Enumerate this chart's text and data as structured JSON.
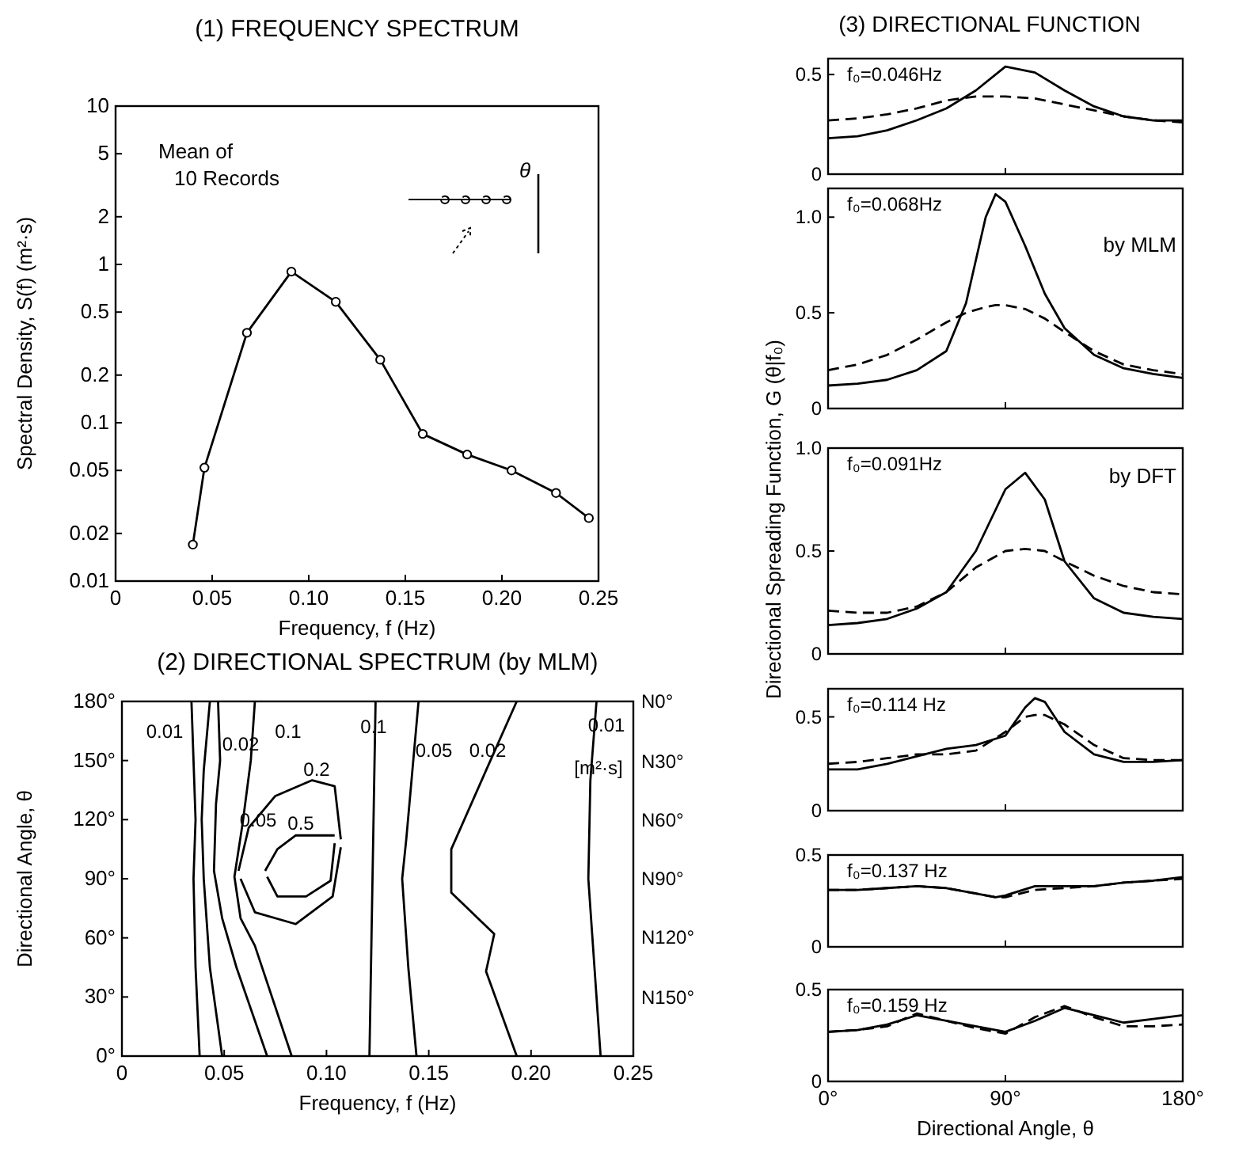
{
  "chart_data": [
    {
      "type": "line",
      "title": "(1) FREQUENCY SPECTRUM",
      "xlabel": "Frequency, f (Hz)",
      "ylabel": "Spectral Density, S(f) (m²·s)",
      "log": "y",
      "marker": "circle",
      "line_style": "solid",
      "x": [
        0.04,
        0.046,
        0.068,
        0.091,
        0.114,
        0.137,
        0.159,
        0.182,
        0.205,
        0.228,
        0.245
      ],
      "series": [
        {
          "color": "#000000",
          "values": [
            0.017,
            0.052,
            0.37,
            0.9,
            0.58,
            0.25,
            0.085,
            0.063,
            0.05,
            0.036,
            0.025
          ]
        }
      ],
      "xlim": [
        0,
        0.25
      ],
      "xticks": [
        0,
        0.05,
        {
          "value": 0.1,
          "label": "0.10"
        },
        0.15,
        {
          "value": 0.2,
          "label": "0.20"
        },
        0.25
      ],
      "ylim": [
        0.01,
        10
      ],
      "yticks": [
        0.01,
        0.02,
        0.05,
        0.1,
        0.2,
        0.5,
        1,
        2,
        5,
        10
      ],
      "annotations": [
        "Mean of\n10 Records",
        "θ"
      ]
    },
    {
      "type": "line",
      "title": "(2) DIRECTIONAL SPECTRUM (by MLM)",
      "xlabel": "Frequency, f (Hz)",
      "ylabel": "Directional Angle, θ",
      "line_style": "solid",
      "series": [
        {
          "color": "#000000",
          "x": [
            0.034,
            0.035,
            0.036,
            0.035,
            0.036,
            0.038
          ],
          "values": [
            180,
            150,
            120,
            90,
            45,
            0
          ]
        },
        {
          "color": "#000000",
          "x": [
            0.043,
            0.04,
            0.039,
            0.04,
            0.043,
            0.049
          ],
          "values": [
            180,
            145,
            120,
            90,
            45,
            0
          ]
        },
        {
          "color": "#000000",
          "x": [
            0.047,
            0.048,
            0.046,
            0.045,
            0.049,
            0.056,
            0.071
          ],
          "values": [
            180,
            150,
            128,
            94,
            70,
            45,
            0
          ]
        },
        {
          "color": "#000000",
          "x": [
            0.065,
            0.063,
            0.059,
            0.055,
            0.058,
            0.065,
            0.083
          ],
          "values": [
            180,
            150,
            118,
            91,
            70,
            56,
            0
          ]
        },
        {
          "color": "#000000",
          "x": [
            0.057,
            0.062,
            0.075,
            0.093,
            0.104,
            0.107
          ],
          "values": [
            94,
            116,
            132,
            140,
            137,
            110
          ]
        },
        {
          "color": "#000000",
          "x": [
            0.058,
            0.065,
            0.085,
            0.103,
            0.107
          ],
          "values": [
            90,
            73,
            67,
            81,
            106
          ]
        },
        {
          "color": "#000000",
          "x": [
            0.07,
            0.076,
            0.085,
            0.104
          ],
          "values": [
            94,
            105,
            112,
            112
          ]
        },
        {
          "color": "#000000",
          "x": [
            0.071,
            0.076,
            0.09,
            0.102,
            0.104
          ],
          "values": [
            91,
            81,
            81,
            89,
            108
          ]
        },
        {
          "color": "#000000",
          "x": [
            0.124,
            0.123,
            0.122,
            0.121
          ],
          "values": [
            180,
            120,
            60,
            0
          ]
        },
        {
          "color": "#000000",
          "x": [
            0.145,
            0.142,
            0.139,
            0.137,
            0.14,
            0.144
          ],
          "values": [
            180,
            145,
            110,
            90,
            45,
            0
          ]
        },
        {
          "color": "#000000",
          "x": [
            0.193,
            0.178,
            0.161,
            0.161,
            0.182,
            0.178,
            0.193
          ],
          "values": [
            180,
            145,
            105,
            83,
            62,
            43,
            0
          ]
        },
        {
          "color": "#000000",
          "x": [
            0.232,
            0.229,
            0.228,
            0.231,
            0.234
          ],
          "values": [
            180,
            140,
            90,
            45,
            0
          ]
        }
      ],
      "xlim": [
        0,
        0.25
      ],
      "xticks": [
        0,
        0.05,
        {
          "value": 0.1,
          "label": "0.10"
        },
        0.15,
        {
          "value": 0.2,
          "label": "0.20"
        },
        0.25
      ],
      "ylim": [
        0,
        180
      ],
      "yticks": [
        {
          "value": 0,
          "label": "0°"
        },
        {
          "value": 30,
          "label": "30°"
        },
        {
          "value": 60,
          "label": "60°"
        },
        {
          "value": 90,
          "label": "90°"
        },
        {
          "value": 120,
          "label": "120°"
        },
        {
          "value": 150,
          "label": "150°"
        },
        {
          "value": 180,
          "label": "180°"
        }
      ],
      "annotations": [
        "0.01",
        "0.02",
        "0.05",
        "0.1",
        "0.2",
        "0.5",
        "0.1",
        "0.05",
        "0.02",
        "0.01",
        "[m²·s]",
        "N0°",
        "N30°",
        "N60°",
        "N90°",
        "N120°",
        "N150°"
      ]
    },
    {
      "type": "line",
      "title": "(3) DIRECTIONAL FUNCTION",
      "subtitle": "f₀=0.046Hz",
      "tick_labels": "y",
      "x": [
        0,
        15,
        30,
        45,
        60,
        75,
        90,
        105,
        120,
        135,
        150,
        165,
        180
      ],
      "series": [
        {
          "color": "#000000",
          "line_style": "solid",
          "values": [
            0.18,
            0.19,
            0.22,
            0.27,
            0.33,
            0.42,
            0.54,
            0.51,
            0.42,
            0.34,
            0.29,
            0.27,
            0.27
          ]
        },
        {
          "color": "#000000",
          "line_style": "dashed",
          "values": [
            0.27,
            0.28,
            0.3,
            0.33,
            0.37,
            0.39,
            0.39,
            0.38,
            0.35,
            0.32,
            0.29,
            0.27,
            0.26
          ]
        }
      ],
      "xlim": [
        0,
        180
      ],
      "xticks": [
        {
          "value": 90,
          "label": null
        }
      ],
      "ylim": [
        0,
        0.58
      ],
      "yticks": [
        0,
        0.5
      ]
    },
    {
      "type": "line",
      "subtitle": "f₀=0.068Hz",
      "tick_labels": "y",
      "x": [
        0,
        15,
        30,
        45,
        60,
        70,
        80,
        85,
        90,
        100,
        110,
        120,
        135,
        150,
        165,
        180
      ],
      "series": [
        {
          "name": "by MLM",
          "color": "#000000",
          "line_style": "solid",
          "values": [
            0.12,
            0.13,
            0.15,
            0.2,
            0.3,
            0.55,
            1.0,
            1.12,
            1.08,
            0.85,
            0.6,
            0.42,
            0.28,
            0.21,
            0.18,
            0.16
          ]
        },
        {
          "color": "#000000",
          "line_style": "dashed",
          "values": [
            0.2,
            0.23,
            0.28,
            0.36,
            0.45,
            0.5,
            0.53,
            0.54,
            0.54,
            0.52,
            0.47,
            0.4,
            0.3,
            0.23,
            0.2,
            0.18
          ]
        }
      ],
      "xlim": [
        0,
        180
      ],
      "xticks": [
        {
          "value": 90,
          "label": null
        }
      ],
      "ylim": [
        0,
        1.15
      ],
      "yticks": [
        0,
        0.5,
        {
          "value": 1,
          "label": "1.0"
        }
      ]
    },
    {
      "type": "line",
      "subtitle": "f₀=0.091Hz",
      "ylabel": "Directional Spreading Function, G (θ|f₀)",
      "tick_labels": "y",
      "x": [
        0,
        15,
        30,
        45,
        60,
        75,
        90,
        100,
        110,
        120,
        135,
        150,
        165,
        180
      ],
      "series": [
        {
          "color": "#000000",
          "line_style": "solid",
          "values": [
            0.14,
            0.15,
            0.17,
            0.22,
            0.3,
            0.5,
            0.8,
            0.88,
            0.75,
            0.45,
            0.27,
            0.2,
            0.18,
            0.17
          ]
        },
        {
          "name": "by DFT",
          "color": "#000000",
          "line_style": "dashed",
          "values": [
            0.21,
            0.2,
            0.2,
            0.23,
            0.3,
            0.42,
            0.5,
            0.51,
            0.5,
            0.45,
            0.38,
            0.33,
            0.3,
            0.29
          ]
        }
      ],
      "xlim": [
        0,
        180
      ],
      "xticks": [
        {
          "value": 90,
          "label": null
        }
      ],
      "ylim": [
        0,
        1
      ],
      "yticks": [
        0,
        0.5,
        {
          "value": 1,
          "label": "1.0"
        }
      ]
    },
    {
      "type": "line",
      "subtitle": "f₀=0.114 Hz",
      "tick_labels": "y",
      "x": [
        0,
        15,
        30,
        45,
        60,
        75,
        90,
        100,
        105,
        110,
        120,
        135,
        150,
        165,
        180
      ],
      "series": [
        {
          "color": "#000000",
          "line_style": "solid",
          "values": [
            0.22,
            0.22,
            0.25,
            0.29,
            0.33,
            0.35,
            0.4,
            0.55,
            0.6,
            0.58,
            0.42,
            0.3,
            0.26,
            0.26,
            0.27
          ]
        },
        {
          "color": "#000000",
          "line_style": "dashed",
          "values": [
            0.25,
            0.26,
            0.28,
            0.3,
            0.3,
            0.32,
            0.42,
            0.5,
            0.51,
            0.51,
            0.46,
            0.35,
            0.28,
            0.27,
            0.27
          ]
        }
      ],
      "xlim": [
        0,
        180
      ],
      "xticks": [
        {
          "value": 90,
          "label": null
        }
      ],
      "ylim": [
        0,
        0.65
      ],
      "yticks": [
        0,
        0.5
      ]
    },
    {
      "type": "line",
      "subtitle": "f₀=0.137 Hz",
      "tick_labels": "y",
      "x": [
        0,
        15,
        30,
        45,
        60,
        75,
        85,
        90,
        105,
        120,
        135,
        150,
        165,
        180
      ],
      "series": [
        {
          "color": "#000000",
          "line_style": "solid",
          "values": [
            0.31,
            0.31,
            0.32,
            0.33,
            0.32,
            0.29,
            0.27,
            0.28,
            0.33,
            0.33,
            0.33,
            0.35,
            0.36,
            0.38
          ]
        },
        {
          "color": "#000000",
          "line_style": "dashed",
          "values": [
            0.31,
            0.31,
            0.32,
            0.33,
            0.32,
            0.29,
            0.27,
            0.27,
            0.31,
            0.32,
            0.33,
            0.35,
            0.36,
            0.37
          ]
        }
      ],
      "xlim": [
        0,
        180
      ],
      "xticks": [
        {
          "value": 90,
          "label": null
        }
      ],
      "ylim": [
        0,
        0.5
      ],
      "yticks": [
        0,
        0.5
      ]
    },
    {
      "type": "line",
      "subtitle": "f₀=0.159 Hz",
      "xlabel": "Directional Angle, θ",
      "x": [
        0,
        15,
        30,
        45,
        60,
        75,
        90,
        105,
        120,
        135,
        150,
        165,
        180
      ],
      "series": [
        {
          "color": "#000000",
          "line_style": "solid",
          "values": [
            0.27,
            0.28,
            0.31,
            0.36,
            0.33,
            0.3,
            0.27,
            0.33,
            0.4,
            0.36,
            0.32,
            0.34,
            0.36
          ]
        },
        {
          "color": "#000000",
          "line_style": "dashed",
          "values": [
            0.27,
            0.28,
            0.3,
            0.37,
            0.33,
            0.29,
            0.26,
            0.35,
            0.41,
            0.35,
            0.3,
            0.3,
            0.31
          ]
        }
      ],
      "xlim": [
        0,
        180
      ],
      "xticks": [
        {
          "value": 0,
          "label": "0°"
        },
        {
          "value": 90,
          "label": "90°"
        },
        {
          "value": 180,
          "label": "180°"
        }
      ],
      "ylim": [
        0,
        0.5
      ],
      "yticks": [
        0,
        0.5
      ]
    }
  ]
}
